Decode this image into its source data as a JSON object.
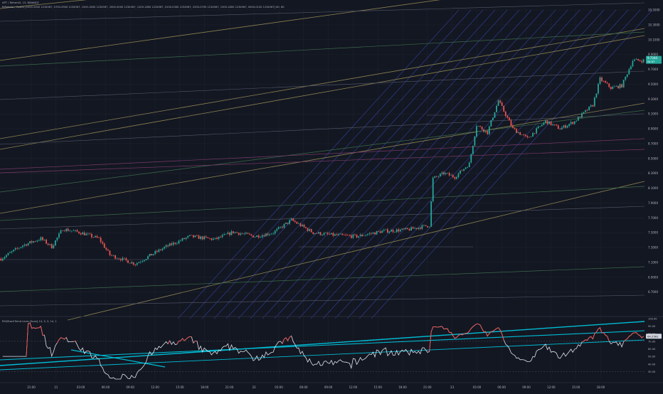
{
  "header": {
    "symbol_line": "APT / TetherUS, 15, BINANCE",
    "indicator_line": "RiRoheta / Opens [2200-2400 1234567, 0700-0900 1234567, 1000-1800 1234567, 2000-0000 1234567, 1200-1800 1234567, 0100-0300 1234567, 2200-0700 1234567, 1500-1800 1234567, 0000-0100 1234567] 60, 60"
  },
  "rsi_panel": {
    "label": "RSI/StochTrend Lines [Acan] 14, 3, 3, 14, 1"
  },
  "colors": {
    "background": "#131722",
    "grid": "#1e222d",
    "up": "#26a69a",
    "down": "#ef5350",
    "blue_channel": "#2f3c8c",
    "yellow_line": "#8a8250",
    "green_line": "#3b6b48",
    "magenta_line": "#7a3a6a",
    "cyan_trend": "#00bcd4",
    "price_badge": "#26a69a"
  },
  "price_badge": {
    "value": "9.7340",
    "sub": "04:47"
  },
  "rsi_badge": "64.2561",
  "chart_data": [
    {
      "type": "candlestick",
      "timeframe": "15",
      "y_axis": {
        "min": 6.4,
        "max": 10.5,
        "ticks": [
          "10.5000",
          "10.3000",
          "10.1000",
          "9.9000",
          "9.7000",
          "9.5000",
          "9.3000",
          "9.1000",
          "8.9000",
          "8.7000",
          "8.5000",
          "8.3000",
          "8.1000",
          "7.9000",
          "7.7000",
          "7.5000",
          "7.3000",
          "7.1000",
          "6.9000",
          "6.7000"
        ]
      },
      "x_axis": {
        "ticks": [
          "21:00",
          "11",
          "03:00",
          "06:00",
          "09:00",
          "12:00",
          "15:00",
          "18:00",
          "21:00",
          "22",
          "03:00",
          "06:00",
          "09:00",
          "12:00",
          "15:00",
          "18:00",
          "21:00",
          "23",
          "03:00",
          "06:00",
          "09:00",
          "12:00",
          "15:00",
          "18:00"
        ]
      },
      "close_anchors": [
        [
          0,
          7.15
        ],
        [
          12,
          7.33
        ],
        [
          22,
          7.42
        ],
        [
          28,
          7.31
        ],
        [
          34,
          7.55
        ],
        [
          44,
          7.5
        ],
        [
          54,
          7.42
        ],
        [
          60,
          7.2
        ],
        [
          74,
          7.08
        ],
        [
          90,
          7.3
        ],
        [
          104,
          7.45
        ],
        [
          118,
          7.41
        ],
        [
          128,
          7.51
        ],
        [
          140,
          7.45
        ],
        [
          150,
          7.5
        ],
        [
          160,
          7.67
        ],
        [
          172,
          7.5
        ],
        [
          182,
          7.47
        ],
        [
          196,
          7.45
        ],
        [
          210,
          7.52
        ],
        [
          224,
          7.54
        ],
        [
          236,
          7.6
        ],
        [
          238,
          8.23
        ],
        [
          244,
          8.3
        ],
        [
          250,
          8.25
        ],
        [
          258,
          8.43
        ],
        [
          262,
          8.95
        ],
        [
          268,
          8.85
        ],
        [
          274,
          9.28
        ],
        [
          282,
          8.9
        ],
        [
          290,
          8.77
        ],
        [
          300,
          9.0
        ],
        [
          308,
          8.9
        ],
        [
          316,
          9.0
        ],
        [
          326,
          9.22
        ],
        [
          330,
          9.57
        ],
        [
          336,
          9.45
        ],
        [
          342,
          9.48
        ],
        [
          348,
          9.82
        ]
      ],
      "volatility": 0.025,
      "seed": 7
    },
    {
      "type": "line",
      "title": "RSI",
      "y_axis": {
        "min": 20,
        "max": 100,
        "ticks": [
          "100.00",
          "90.00",
          "80.00",
          "70.00",
          "60.00",
          "50.00",
          "40.00",
          "30.00"
        ]
      },
      "overbought": 70,
      "oversold": 30,
      "seed": 11
    }
  ]
}
